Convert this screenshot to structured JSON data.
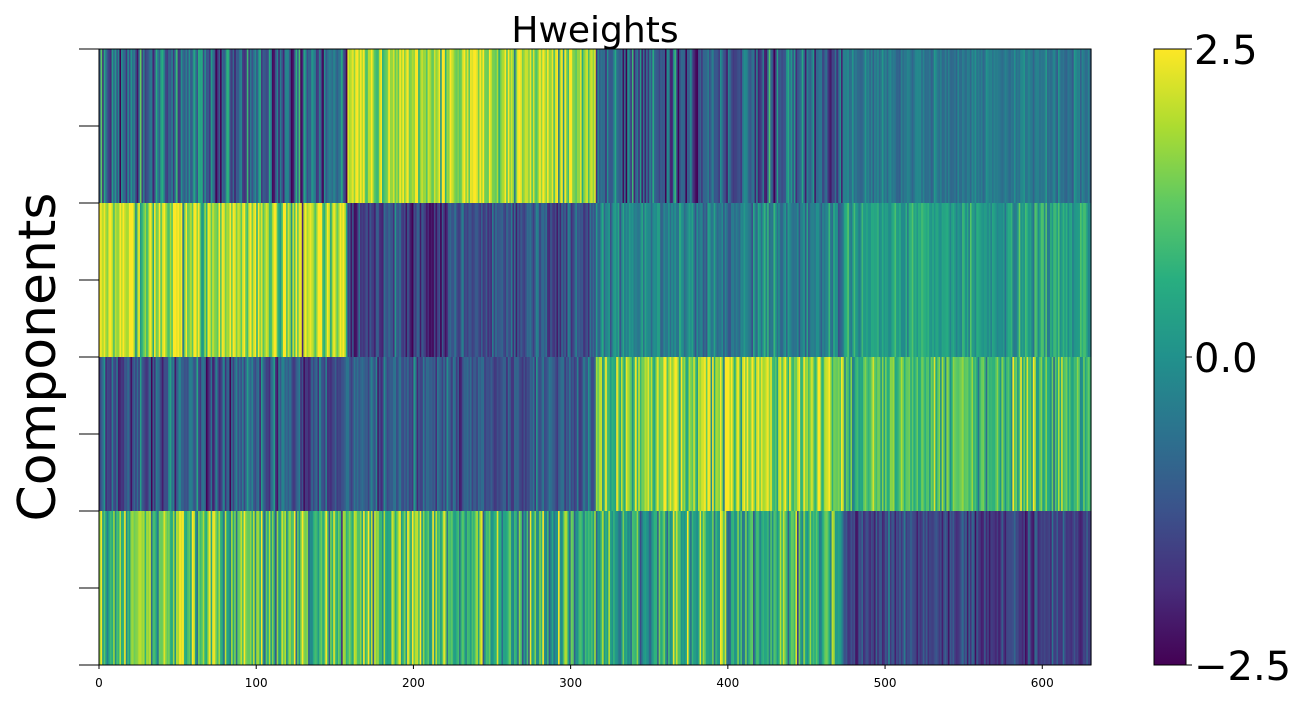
{
  "chart_data": {
    "type": "heatmap",
    "title": "Hweights",
    "ylabel": "Components",
    "xlabel": "",
    "x_count": 631,
    "xlim": [
      0,
      631
    ],
    "x_ticks": [
      0,
      100,
      200,
      300,
      400,
      500,
      600
    ],
    "x_tick_labels": [
      "0",
      "100",
      "200",
      "300",
      "400",
      "500",
      "600"
    ],
    "rows": 4,
    "y_tick_count": 9,
    "y_tick_labels_shown": false,
    "colormap": "viridis",
    "vmin": -2.5,
    "vmax": 2.5,
    "colorbar_ticks": [
      2.5,
      0.0,
      -2.5
    ],
    "colorbar_tick_labels": [
      "2.5",
      "0.0",
      "−2.5"
    ],
    "noise_seed": 7,
    "column_blocks": [
      {
        "x_start": 0,
        "x_end": 158,
        "row_means": [
          -0.8,
          1.8,
          -1.1,
          1.2
        ],
        "row_spread": [
          0.9,
          0.8,
          0.6,
          0.9
        ]
      },
      {
        "x_start": 158,
        "x_end": 221,
        "row_means": [
          1.9,
          -1.6,
          -1.1,
          1.2
        ],
        "row_spread": [
          0.7,
          0.5,
          0.5,
          0.9
        ]
      },
      {
        "x_start": 221,
        "x_end": 316,
        "row_means": [
          1.9,
          -1.2,
          -1.1,
          0.6
        ],
        "row_spread": [
          0.7,
          0.5,
          0.5,
          0.9
        ]
      },
      {
        "x_start": 316,
        "x_end": 474,
        "row_means": [
          -1.0,
          -0.3,
          1.6,
          0.5
        ],
        "row_spread": [
          0.8,
          0.5,
          0.8,
          0.8
        ]
      },
      {
        "x_start": 474,
        "x_end": 631,
        "row_means": [
          -0.5,
          0.3,
          0.9,
          -1.5
        ],
        "row_spread": [
          0.3,
          0.4,
          0.6,
          0.4
        ]
      }
    ]
  }
}
